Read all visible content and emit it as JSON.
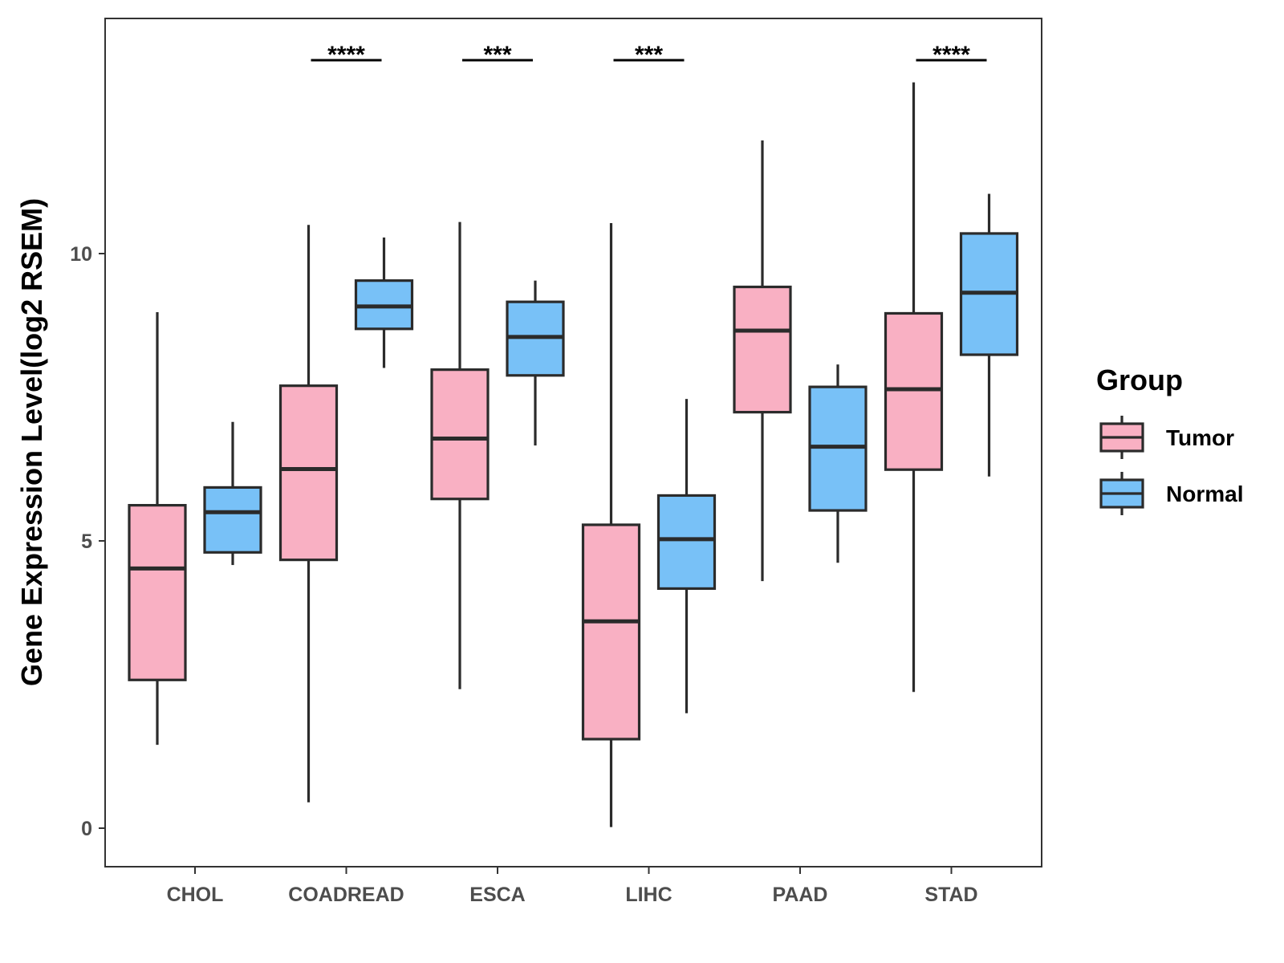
{
  "chart_data": {
    "type": "boxplot",
    "ylabel": "Gene Expression Level(log2 RSEM)",
    "xlabel": "",
    "ylim": [
      -0.65,
      14.1
    ],
    "yticks": [
      0,
      5,
      10
    ],
    "categories": [
      "CHOL",
      "COADREAD",
      "ESCA",
      "LIHC",
      "PAAD",
      "STAD"
    ],
    "legend": {
      "title": "Group",
      "position": "right",
      "entries": [
        {
          "name": "Tumor",
          "color": "#F9B0C3"
        },
        {
          "name": "Normal",
          "color": "#78C1F7"
        }
      ]
    },
    "series": [
      {
        "name": "Tumor",
        "color": "#F9B0C3",
        "boxes": [
          {
            "category": "CHOL",
            "min": 1.45,
            "q1": 2.58,
            "median": 4.52,
            "q3": 5.62,
            "max": 8.98
          },
          {
            "category": "COADREAD",
            "min": 0.45,
            "q1": 4.67,
            "median": 6.25,
            "q3": 7.7,
            "max": 10.5
          },
          {
            "category": "ESCA",
            "min": 2.42,
            "q1": 5.73,
            "median": 6.78,
            "q3": 7.98,
            "max": 10.55
          },
          {
            "category": "LIHC",
            "min": 0.02,
            "q1": 1.55,
            "median": 3.6,
            "q3": 5.28,
            "max": 10.53
          },
          {
            "category": "PAAD",
            "min": 4.3,
            "q1": 7.24,
            "median": 8.66,
            "q3": 9.42,
            "max": 11.97
          },
          {
            "category": "STAD",
            "min": 2.37,
            "q1": 6.24,
            "median": 7.64,
            "q3": 8.96,
            "max": 12.98
          }
        ]
      },
      {
        "name": "Normal",
        "color": "#78C1F7",
        "boxes": [
          {
            "category": "CHOL",
            "min": 4.58,
            "q1": 4.8,
            "median": 5.5,
            "q3": 5.93,
            "max": 7.07
          },
          {
            "category": "COADREAD",
            "min": 8.01,
            "q1": 8.69,
            "median": 9.08,
            "q3": 9.53,
            "max": 10.28
          },
          {
            "category": "ESCA",
            "min": 6.66,
            "q1": 7.88,
            "median": 8.55,
            "q3": 9.16,
            "max": 9.53
          },
          {
            "category": "LIHC",
            "min": 2.0,
            "q1": 4.17,
            "median": 5.03,
            "q3": 5.79,
            "max": 7.47
          },
          {
            "category": "PAAD",
            "min": 4.62,
            "q1": 5.53,
            "median": 6.64,
            "q3": 7.68,
            "max": 8.07
          },
          {
            "category": "STAD",
            "min": 6.12,
            "q1": 8.24,
            "median": 9.32,
            "q3": 10.35,
            "max": 11.04
          }
        ]
      }
    ],
    "annotations": [
      {
        "category": "COADREAD",
        "label": "****"
      },
      {
        "category": "ESCA",
        "label": "***"
      },
      {
        "category": "LIHC",
        "label": "***"
      },
      {
        "category": "STAD",
        "label": "****"
      }
    ]
  }
}
